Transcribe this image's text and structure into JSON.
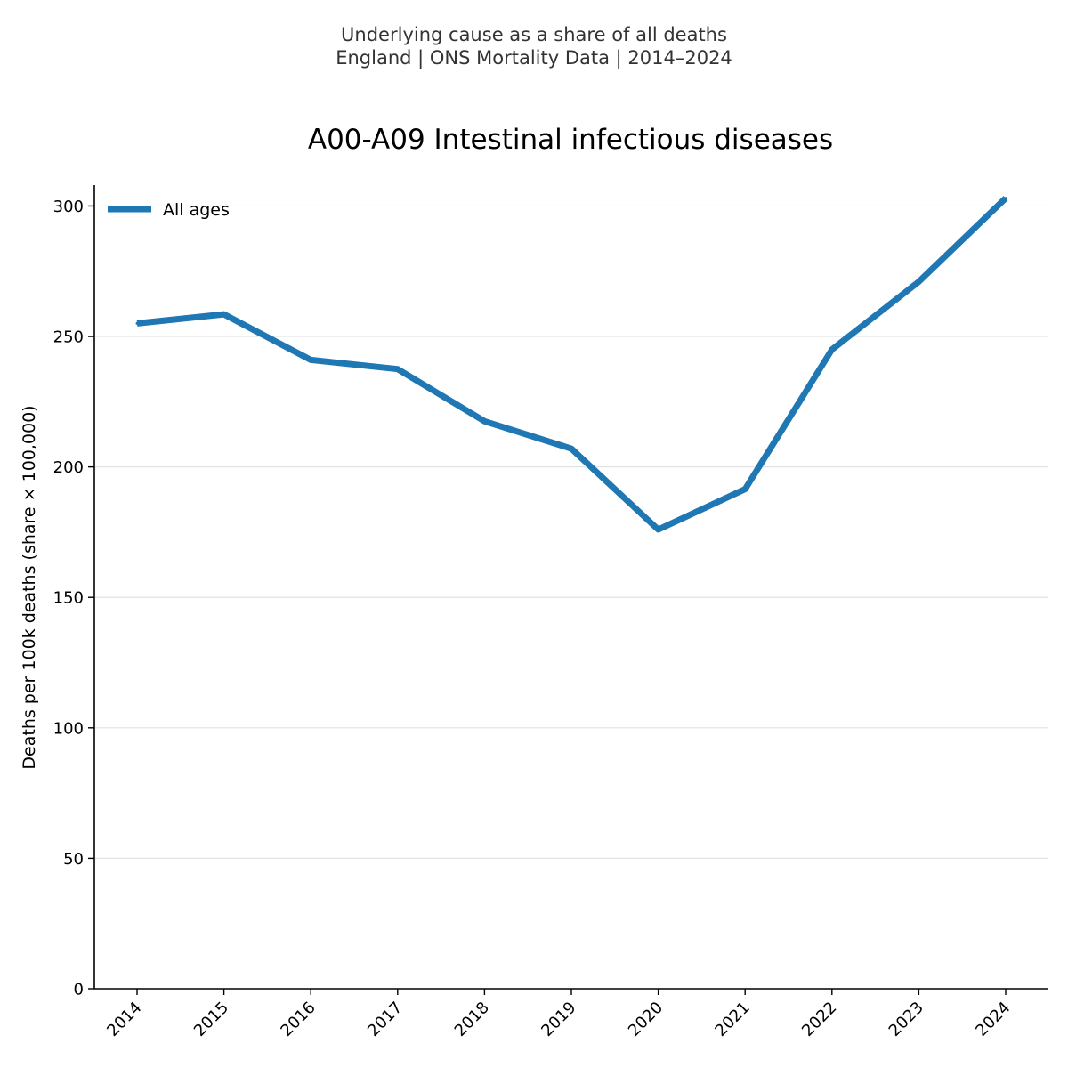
{
  "header": {
    "line1": "Underlying cause as a share of all deaths",
    "line2": "England | ONS Mortality Data | 2014–2024"
  },
  "chart_data": {
    "type": "line",
    "title": "A00-A09 Intestinal infectious diseases",
    "xlabel": "",
    "ylabel": "Deaths per 100k deaths (share × 100,000)",
    "categories": [
      "2014",
      "2015",
      "2016",
      "2017",
      "2018",
      "2019",
      "2020",
      "2021",
      "2022",
      "2023",
      "2024"
    ],
    "series": [
      {
        "name": "All ages",
        "color": "#1f77b4",
        "values": [
          255,
          258.5,
          241,
          237.5,
          217.5,
          207,
          176,
          191.5,
          245,
          271,
          303
        ]
      }
    ],
    "ylim": [
      0,
      308
    ],
    "yticks": [
      0,
      50,
      100,
      150,
      200,
      250,
      300
    ],
    "grid": "horizontal",
    "legend": "top-left"
  }
}
